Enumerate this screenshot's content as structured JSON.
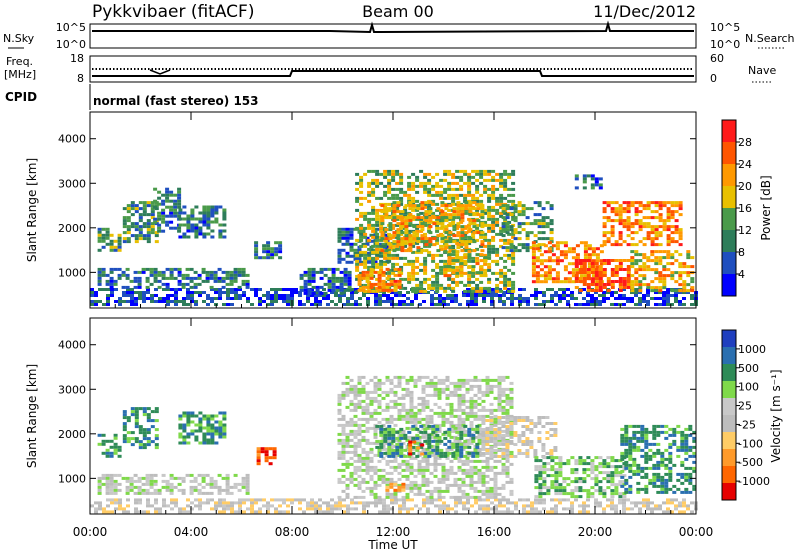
{
  "header": {
    "station": "Pykkvibaer (fitACF)",
    "beam": "Beam 00",
    "date": "11/Dec/2012"
  },
  "strip": {
    "nsky_label": "N.Sky",
    "nsearch_label": "N.Search",
    "nsky_ticks": [
      "10^5",
      "10^0"
    ],
    "nsearch_ticks": [
      "10^5",
      "10^0"
    ],
    "freq_label": "Freq.",
    "freq_unit": "[MHz]",
    "freq_ticks": [
      "18",
      "8"
    ],
    "nave_label": "Nave",
    "nave_ticks": [
      "60",
      "0"
    ],
    "cpid_label": "CPID",
    "cpid_text": "normal (fast stereo) 153"
  },
  "colors": {
    "power_scale": [
      "#0000ff",
      "#1f4fbf",
      "#2e7d5a",
      "#4a9a4a",
      "#e8c000",
      "#ff9900",
      "#ff5500",
      "#ff1a1a"
    ],
    "velocity_scale": [
      "#e60000",
      "#ff6600",
      "#ff9a2a",
      "#ffcc66",
      "#bdbdbd",
      "#c8c8c8",
      "#7fd94a",
      "#2e8b57",
      "#2a6fb0",
      "#1f3fbf"
    ]
  },
  "chart_data": [
    {
      "type": "heatmap",
      "name": "power",
      "ylabel": "Slant Range [km]",
      "yticks": [
        "1000",
        "2000",
        "3000",
        "4000"
      ],
      "ylim": [
        200,
        4600
      ],
      "xlim": [
        0,
        24
      ],
      "colorbar_label": "Power [dB]",
      "colorbar_ticks": [
        "4",
        "8",
        "12",
        "16",
        "20",
        "24",
        "28"
      ],
      "colorbar_range": [
        0,
        32
      ],
      "echo_regions": [
        {
          "t0": 0.0,
          "t1": 24.0,
          "r0": 250,
          "r1": 650,
          "level": 4
        },
        {
          "t0": 0.3,
          "t1": 6.2,
          "r0": 650,
          "r1": 1100,
          "level": 8
        },
        {
          "t0": 0.3,
          "t1": 1.2,
          "r0": 1500,
          "r1": 2000,
          "level": 12
        },
        {
          "t0": 1.3,
          "t1": 2.6,
          "r0": 1700,
          "r1": 2600,
          "level": 12
        },
        {
          "t0": 2.5,
          "t1": 3.5,
          "r0": 1900,
          "r1": 2900,
          "level": 8
        },
        {
          "t0": 3.5,
          "t1": 5.3,
          "r0": 1800,
          "r1": 2500,
          "level": 8
        },
        {
          "t0": 6.5,
          "t1": 7.5,
          "r0": 1300,
          "r1": 1700,
          "level": 8
        },
        {
          "t0": 8.3,
          "t1": 10.3,
          "r0": 500,
          "r1": 1100,
          "level": 6
        },
        {
          "t0": 9.8,
          "t1": 11.8,
          "r0": 1200,
          "r1": 2000,
          "level": 8
        },
        {
          "t0": 10.5,
          "t1": 16.7,
          "r0": 600,
          "r1": 3300,
          "level": 16
        },
        {
          "t0": 11.5,
          "t1": 15.5,
          "r0": 1500,
          "r1": 2600,
          "level": 20
        },
        {
          "t0": 10.6,
          "t1": 12.3,
          "r0": 600,
          "r1": 1100,
          "level": 24
        },
        {
          "t0": 14.0,
          "t1": 15.6,
          "r0": 900,
          "r1": 1500,
          "level": 20
        },
        {
          "t0": 16.3,
          "t1": 18.3,
          "r0": 1500,
          "r1": 2600,
          "level": 12
        },
        {
          "t0": 17.5,
          "t1": 20.3,
          "r0": 800,
          "r1": 1700,
          "level": 24
        },
        {
          "t0": 19.2,
          "t1": 21.3,
          "r0": 600,
          "r1": 1300,
          "level": 28
        },
        {
          "t0": 20.3,
          "t1": 23.4,
          "r0": 1600,
          "r1": 2600,
          "level": 24
        },
        {
          "t0": 21.4,
          "t1": 23.9,
          "r0": 600,
          "r1": 1500,
          "level": 20
        },
        {
          "t0": 19.2,
          "t1": 20.3,
          "r0": 2900,
          "r1": 3200,
          "level": 8
        }
      ]
    },
    {
      "type": "heatmap",
      "name": "velocity",
      "ylabel": "Slant Range [km]",
      "yticks": [
        "1000",
        "2000",
        "3000",
        "4000"
      ],
      "ylim": [
        200,
        4600
      ],
      "xlim": [
        0,
        24
      ],
      "colorbar_label": "Velocity [m s⁻¹]",
      "colorbar_ticks": [
        "1000",
        "500",
        "100",
        "25",
        "-25",
        "-100",
        "-500",
        "-1000"
      ],
      "echo_regions": [
        {
          "t0": 0.0,
          "t1": 24.0,
          "r0": 250,
          "r1": 550,
          "level": 4
        },
        {
          "t0": 0.3,
          "t1": 6.2,
          "r0": 650,
          "r1": 1100,
          "level": 5
        },
        {
          "t0": 0.3,
          "t1": 1.2,
          "r0": 1500,
          "r1": 2000,
          "level": 7
        },
        {
          "t0": 1.3,
          "t1": 2.6,
          "r0": 1700,
          "r1": 2600,
          "level": 7
        },
        {
          "t0": 3.5,
          "t1": 5.3,
          "r0": 1800,
          "r1": 2500,
          "level": 7
        },
        {
          "t0": 6.6,
          "t1": 7.3,
          "r0": 1300,
          "r1": 1700,
          "level": 1
        },
        {
          "t0": 9.8,
          "t1": 16.7,
          "r0": 600,
          "r1": 3300,
          "level": 5
        },
        {
          "t0": 11.3,
          "t1": 15.3,
          "r0": 1500,
          "r1": 2200,
          "level": 7
        },
        {
          "t0": 12.6,
          "t1": 13.2,
          "r0": 1550,
          "r1": 1850,
          "level": 1
        },
        {
          "t0": 15.5,
          "t1": 18.5,
          "r0": 1500,
          "r1": 2400,
          "level": 4
        },
        {
          "t0": 17.6,
          "t1": 21.2,
          "r0": 600,
          "r1": 1500,
          "level": 6
        },
        {
          "t0": 21.0,
          "t1": 23.9,
          "r0": 700,
          "r1": 2200,
          "level": 7
        },
        {
          "t0": 11.7,
          "t1": 12.5,
          "r0": 700,
          "r1": 900,
          "level": 2
        }
      ]
    }
  ],
  "axes": {
    "xticks": [
      "00:00",
      "04:00",
      "08:00",
      "12:00",
      "16:00",
      "20:00",
      "00:00"
    ],
    "xlabel": "Time UT"
  }
}
